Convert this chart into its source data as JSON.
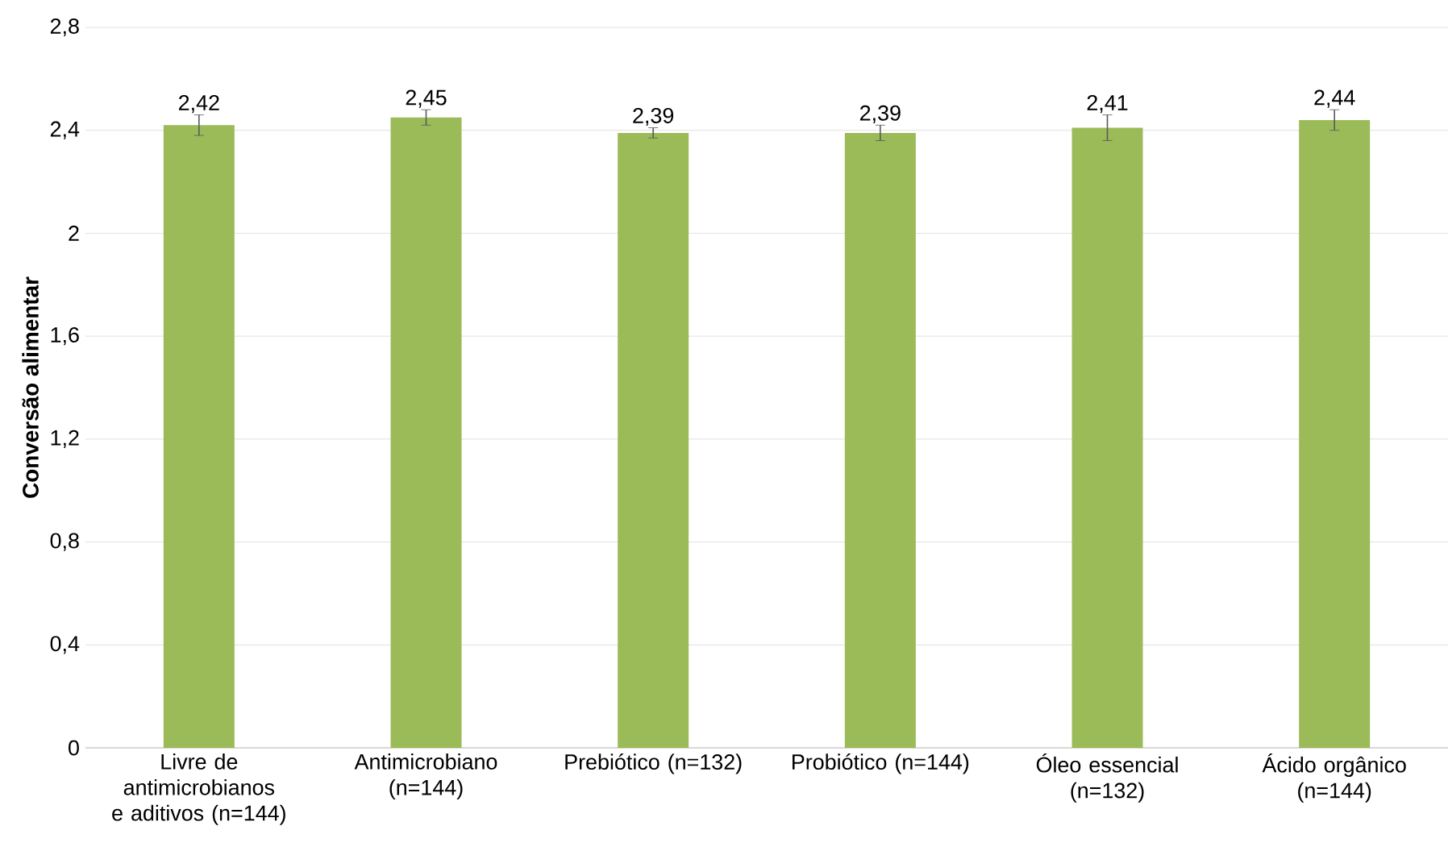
{
  "chart_data": {
    "type": "bar",
    "ylabel": "Conversão alimentar",
    "categories": [
      "Livre de antimicrobianos e aditivos (n=144)",
      "Antimicrobiano (n=144)",
      "Prebiótico (n=132)",
      "Probiótico (n=144)",
      "Óleo essencial (n=132)",
      "Ácido orgânico (n=144)"
    ],
    "values": [
      2.42,
      2.45,
      2.39,
      2.39,
      2.41,
      2.44
    ],
    "errors": [
      0.04,
      0.03,
      0.02,
      0.03,
      0.05,
      0.04
    ],
    "value_labels": [
      "2,42",
      "2,45",
      "2,39",
      "2,39",
      "2,41",
      "2,44"
    ],
    "color": "#9bbb59",
    "ylim": [
      0,
      2.8
    ],
    "yticks": [
      0,
      {
        "value": 0.4,
        "label": "0,4"
      },
      {
        "value": 0.8,
        "label": "0,8"
      },
      {
        "value": 1.2,
        "label": "1,2"
      },
      {
        "value": 1.6,
        "label": "1,6"
      },
      2,
      {
        "value": 2.4,
        "label": "2,4"
      },
      {
        "value": 2.8,
        "label": "2,8"
      }
    ],
    "grid": "y"
  }
}
